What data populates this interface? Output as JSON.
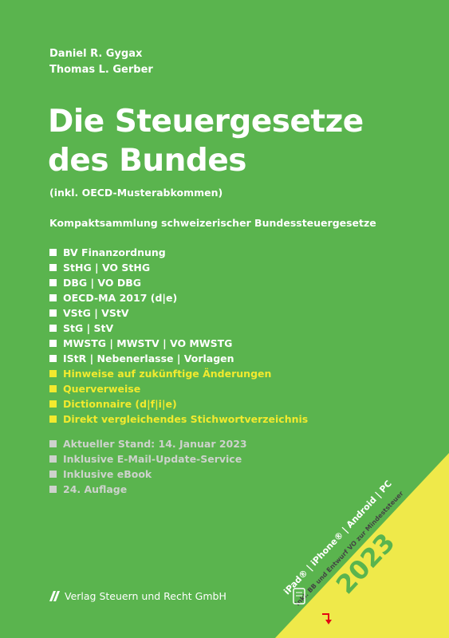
{
  "authors": [
    "Daniel R. Gygax",
    "Thomas L. Gerber"
  ],
  "title": {
    "line1": "Die Steuergesetze",
    "line2": "des Bundes"
  },
  "subtitle": "(inkl. OECD-Musterabkommen)",
  "description": "Kompaktsammlung schweizerischer Bundessteuergesetze",
  "contents": [
    "BV Finanzordnung",
    "StHG | VO StHG",
    "DBG | VO DBG",
    "OECD-MA 2017 (d|e)",
    "VStG | VStV",
    "StG | StV",
    "MWSTG | MWSTV | VO MWSTG",
    "IStR | Nebenerlasse | Vorlagen"
  ],
  "features": [
    "Hinweise auf zukünftige Änderungen",
    "Querverweise",
    "Dictionnaire (d|f|i|e)",
    "Direkt vergleichendes Stichwortverzeichnis"
  ],
  "info": [
    "Aktueller Stand: 14. Januar 2023",
    "Inklusive E-Mail-Update-Service",
    "Inklusive eBook",
    "24. Auflage"
  ],
  "publisher": "Verlag Steuern und Recht GmbH",
  "corner_banner": {
    "platforms": "iPad® | iPhone® | Android | PC",
    "note": "inkl. BB und Entwurf VO zur Mindeststeuer",
    "year": "2023"
  },
  "colors": {
    "background": "#5ab44e",
    "text": "#ffffff",
    "accent_yellow": "#f2ea2e",
    "muted_gray": "#cdd2cc",
    "banner": "#efe94a"
  },
  "icons": [
    "publisher-logo-icon",
    "device-icon",
    "red-arrow-icon"
  ]
}
